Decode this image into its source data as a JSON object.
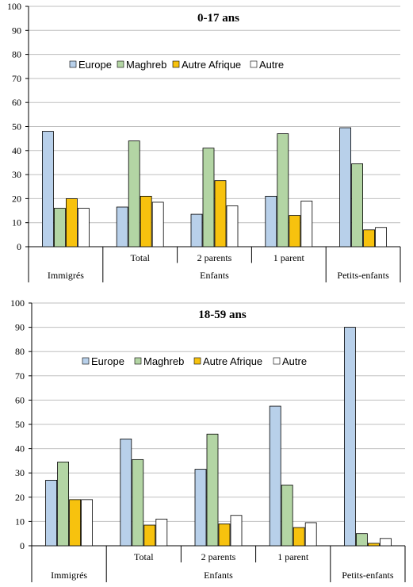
{
  "colors": {
    "Europe": "#b8d0ea",
    "Maghreb": "#b3d5a4",
    "Autre Afrique": "#f7c20e",
    "Autre": "#ffffff",
    "bar_stroke": "#000000",
    "axis": "#000000",
    "grid": "#bfbfbf"
  },
  "chart_data": [
    {
      "type": "bar",
      "title": "0-17 ans",
      "ylim": [
        0,
        100
      ],
      "yticks": [
        0,
        10,
        20,
        30,
        40,
        50,
        60,
        70,
        80,
        90,
        100
      ],
      "grid": true,
      "legend_position": "top-left",
      "categories": [
        "Immigrés",
        "Total",
        "2 parents",
        "1 parent",
        "Petits-enfants"
      ],
      "category_labels": [
        "",
        "Total",
        "2 parents",
        "1 parent",
        ""
      ],
      "group_labels": [
        {
          "label": "Immigrés",
          "span": [
            0,
            0
          ]
        },
        {
          "label": "Enfants",
          "span": [
            1,
            3
          ]
        },
        {
          "label": "Petits-enfants",
          "span": [
            4,
            4
          ]
        }
      ],
      "series": [
        {
          "name": "Europe",
          "values": [
            48,
            16.5,
            13.5,
            21,
            49.5
          ]
        },
        {
          "name": "Maghreb",
          "values": [
            16,
            44,
            41,
            47,
            34.5
          ]
        },
        {
          "name": "Autre Afrique",
          "values": [
            20,
            21,
            27.5,
            13,
            7
          ]
        },
        {
          "name": "Autre",
          "values": [
            16,
            18.5,
            17,
            19,
            8
          ]
        }
      ]
    },
    {
      "type": "bar",
      "title": "18-59 ans",
      "ylim": [
        0,
        100
      ],
      "yticks": [
        0,
        10,
        20,
        30,
        40,
        50,
        60,
        70,
        80,
        90,
        100
      ],
      "grid": true,
      "legend_position": "top-center",
      "categories": [
        "Immigrés",
        "Total",
        "2 parents",
        "1 parent",
        "Petits-enfants"
      ],
      "category_labels": [
        "",
        "Total",
        "2 parents",
        "1 parent",
        ""
      ],
      "group_labels": [
        {
          "label": "Immigrés",
          "span": [
            0,
            0
          ]
        },
        {
          "label": "Enfants",
          "span": [
            1,
            3
          ]
        },
        {
          "label": "Petits-enfants",
          "span": [
            4,
            4
          ]
        }
      ],
      "series": [
        {
          "name": "Europe",
          "values": [
            27,
            44,
            31.5,
            57.5,
            90
          ]
        },
        {
          "name": "Maghreb",
          "values": [
            34.5,
            35.5,
            46,
            25,
            5
          ]
        },
        {
          "name": "Autre Afrique",
          "values": [
            19,
            8.5,
            9,
            7.5,
            1
          ]
        },
        {
          "name": "Autre",
          "values": [
            19,
            11,
            12.5,
            9.5,
            3
          ]
        }
      ]
    }
  ]
}
